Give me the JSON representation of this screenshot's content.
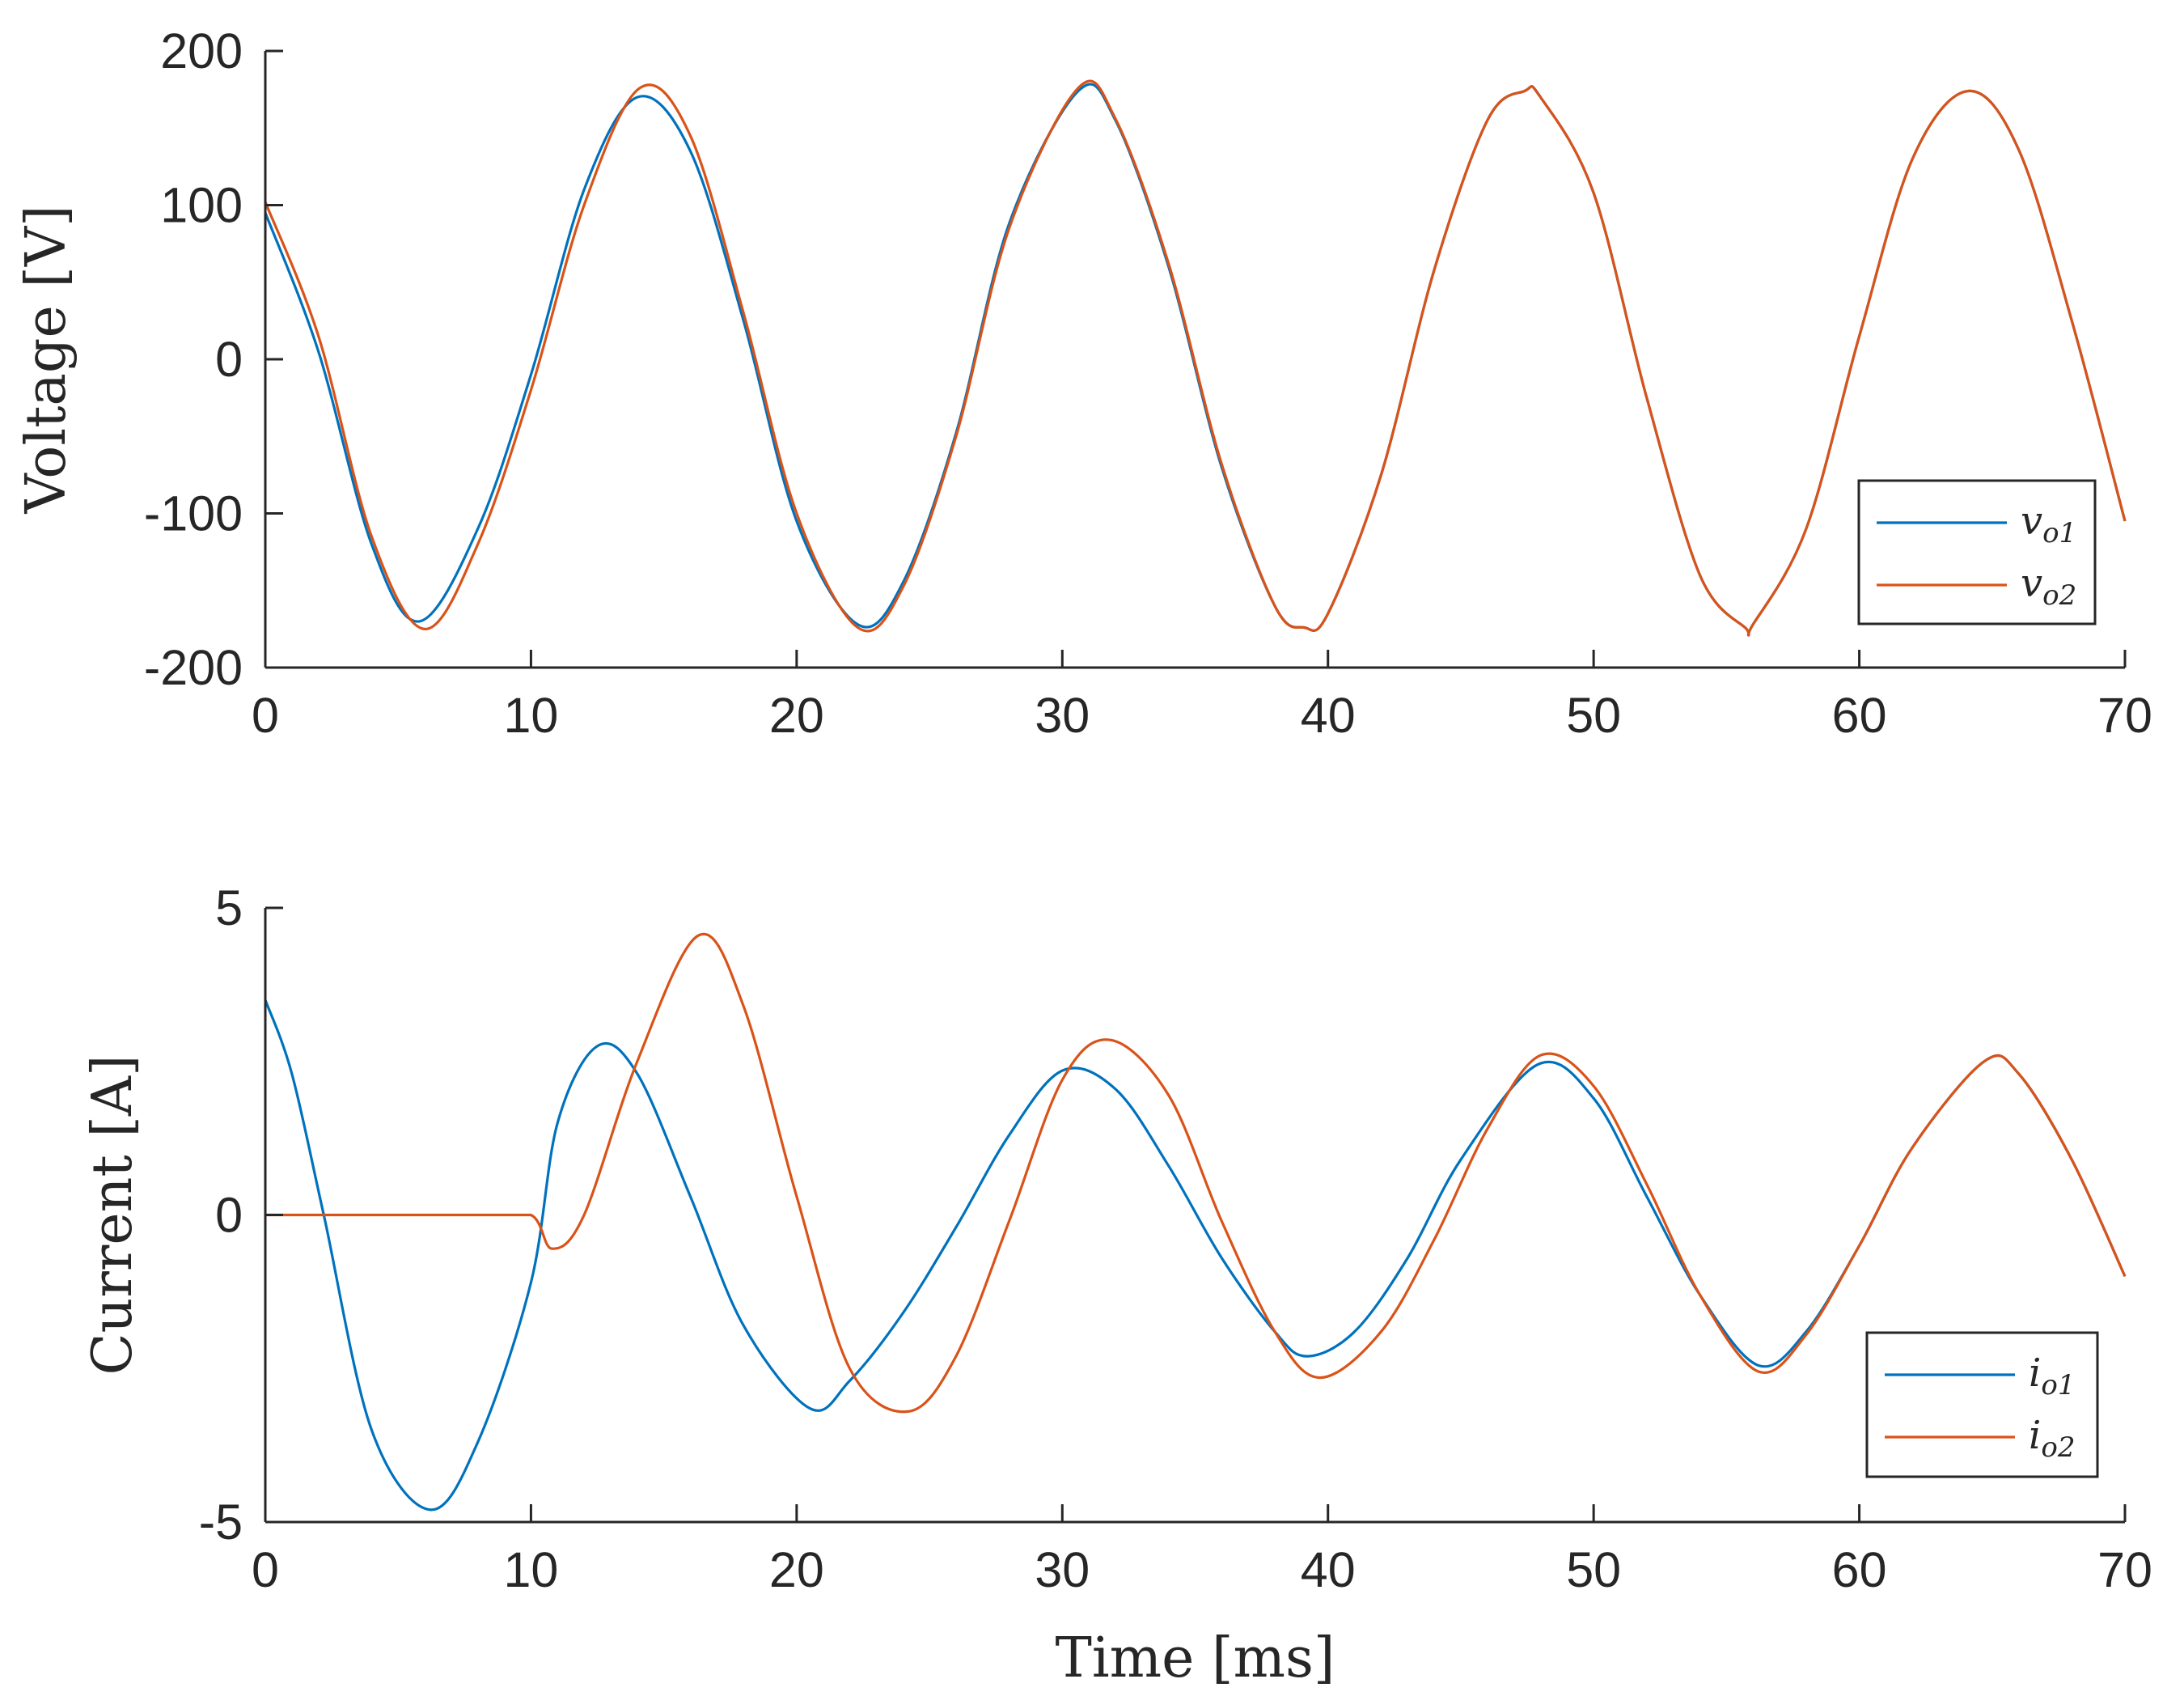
{
  "colors": {
    "series1": "#0072BD",
    "series2": "#D95319",
    "axis": "#262626"
  },
  "chart_data": [
    {
      "type": "line",
      "id": "voltage",
      "xlabel": "Time [ms]",
      "ylabel": "Voltage [V]",
      "xlim": [
        0,
        70
      ],
      "ylim": [
        -200,
        200
      ],
      "xticks": [
        "0",
        "10",
        "20",
        "30",
        "40",
        "50",
        "60",
        "70"
      ],
      "yticks": [
        "-200",
        "-100",
        "0",
        "100",
        "200"
      ],
      "legend_position": "bottom-right",
      "series": [
        {
          "name": "v",
          "sub": "o1",
          "x": [
            0,
            2,
            4,
            5.8,
            8,
            10,
            12,
            14,
            16,
            18,
            20,
            22.3,
            24,
            26,
            28,
            30.6,
            32,
            34,
            36,
            38,
            39.1,
            40,
            42,
            44,
            46,
            47.4,
            48,
            50,
            52,
            54,
            55.7,
            56,
            58,
            60,
            62,
            64.1,
            66,
            68,
            70
          ],
          "y": [
            95,
            5,
            -120,
            -170,
            -110,
            -10,
            110,
            170,
            135,
            25,
            -105,
            -172,
            -145,
            -48,
            88,
            174,
            155,
            60,
            -70,
            -160,
            -174,
            -165,
            -75,
            58,
            155,
            174,
            170,
            108,
            -25,
            -140,
            -174,
            -172,
            -110,
            15,
            130,
            174,
            136,
            25,
            -105
          ]
        },
        {
          "name": "v",
          "sub": "o2",
          "x": [
            0,
            2,
            4,
            6,
            8,
            10,
            12,
            14.1,
            16,
            18,
            20,
            22.3,
            24,
            26,
            28,
            30.6,
            32,
            34,
            36,
            38,
            39.1,
            40,
            42,
            44,
            46,
            47.4,
            48,
            50,
            52,
            54,
            55.7,
            56,
            58,
            60,
            62,
            64.1,
            66,
            68,
            70
          ],
          "y": [
            102,
            15,
            -115,
            -175,
            -120,
            -20,
            100,
            176,
            145,
            30,
            -100,
            -174,
            -148,
            -50,
            85,
            176,
            156,
            62,
            -68,
            -160,
            -174,
            -165,
            -75,
            58,
            155,
            174,
            170,
            108,
            -25,
            -140,
            -174,
            -172,
            -110,
            15,
            130,
            174,
            136,
            25,
            -105
          ]
        }
      ]
    },
    {
      "type": "line",
      "id": "current",
      "xlabel": "Time [ms]",
      "ylabel": "Current [A]",
      "xlim": [
        0,
        70
      ],
      "ylim": [
        -5,
        5
      ],
      "xticks": [
        "0",
        "10",
        "20",
        "30",
        "40",
        "50",
        "60",
        "70"
      ],
      "yticks": [
        "-5",
        "0",
        "5"
      ],
      "legend_position": "bottom-right",
      "series": [
        {
          "name": "i",
          "sub": "o1",
          "x": [
            0,
            1,
            2.2,
            4,
            6.2,
            8,
            10,
            11,
            12.5,
            14,
            16,
            18,
            20.5,
            22,
            24,
            26,
            28,
            30,
            32,
            34,
            36,
            38,
            39.2,
            41,
            43,
            45,
            47.9,
            50,
            52,
            54,
            56.2,
            58,
            60,
            62,
            64.7,
            66,
            68,
            70
          ],
          "y": [
            3.5,
            2.3,
            0,
            -3.5,
            -4.8,
            -3.7,
            -1.1,
            1.5,
            2.75,
            2.3,
            0.3,
            -1.8,
            -3.15,
            -2.7,
            -1.6,
            -0.2,
            1.3,
            2.35,
            2.05,
            0.8,
            -0.7,
            -1.9,
            -2.3,
            -1.9,
            -0.7,
            0.9,
            2.45,
            1.9,
            0.3,
            -1.3,
            -2.45,
            -1.9,
            -0.5,
            1.1,
            2.5,
            2.3,
            0.9,
            -1.0
          ]
        },
        {
          "name": "i",
          "sub": "o2",
          "x": [
            0,
            2,
            4,
            6,
            8,
            10,
            10.8,
            12,
            14,
            16.3,
            18,
            20,
            22,
            24.2,
            26,
            28,
            30,
            31.8,
            34,
            36,
            38,
            39.7,
            42,
            44,
            46,
            48,
            50,
            52,
            54,
            56.2,
            58,
            60,
            62,
            64.7,
            66,
            68,
            70
          ],
          "y": [
            0,
            0,
            0,
            0,
            0,
            0,
            -0.55,
            0,
            2.5,
            4.55,
            3.4,
            0.3,
            -2.5,
            -3.2,
            -2.3,
            -0.1,
            2.2,
            2.85,
            1.95,
            -0.1,
            -1.9,
            -2.65,
            -1.9,
            -0.4,
            1.4,
            2.6,
            2.1,
            0.5,
            -1.3,
            -2.55,
            -1.95,
            -0.5,
            1.1,
            2.5,
            2.3,
            0.9,
            -1.0
          ]
        }
      ]
    }
  ]
}
